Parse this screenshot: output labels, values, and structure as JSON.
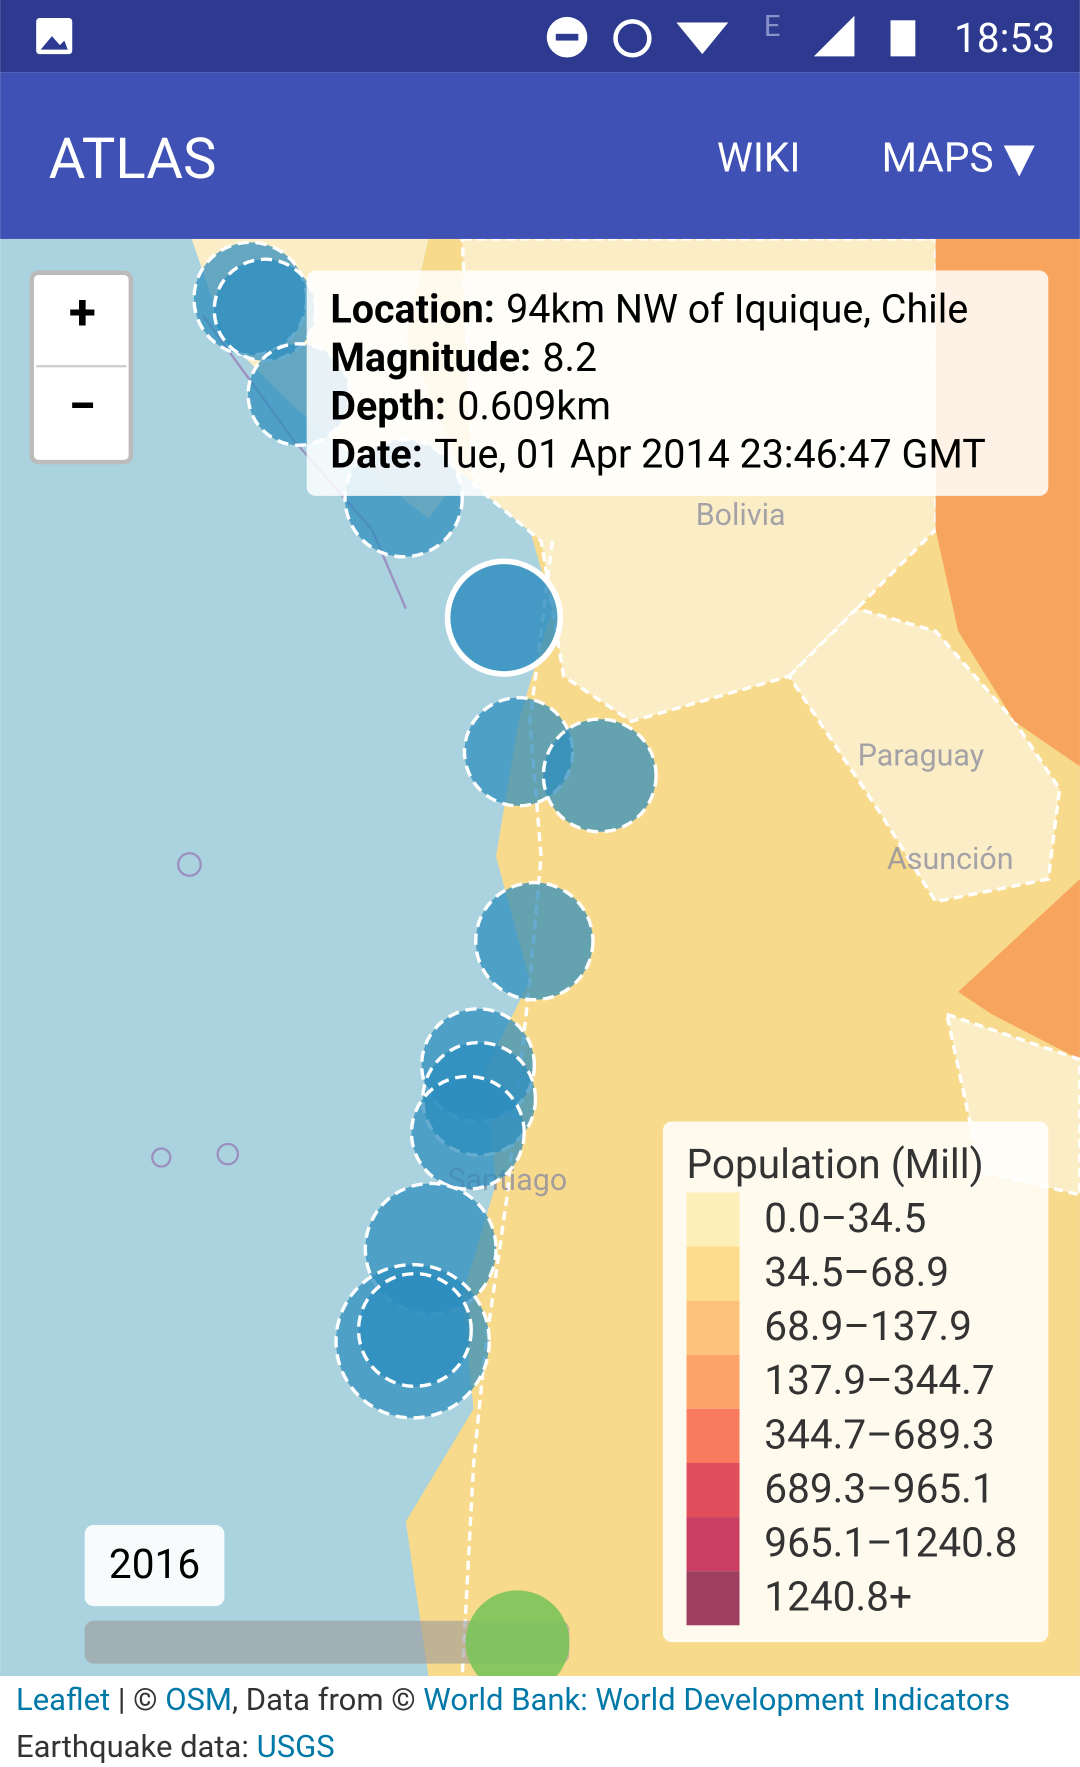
{
  "status_bar": {
    "time": "18:53",
    "network": "E"
  },
  "app_bar": {
    "title": "ATLAS",
    "menu": [
      "WIKI",
      "MAPS ▼"
    ]
  },
  "zoom": {
    "in": "+",
    "out": "−"
  },
  "map_labels": [
    "Bolivia",
    "Paraguay",
    "Asunción",
    "Santiago"
  ],
  "popup": [
    {
      "label": "Location:",
      "value": "94km NW of Iquique, Chile"
    },
    {
      "label": "Magnitude:",
      "value": "8.2"
    },
    {
      "label": "Depth:",
      "value": "0.609km"
    },
    {
      "label": "Date:",
      "value": "Tue, 01 Apr 2014 23:46:47 GMT"
    }
  ],
  "legend": {
    "title": "Population (Mill)",
    "items": [
      {
        "label": "0.0–34.5",
        "color": "#fdefb8"
      },
      {
        "label": "34.5–68.9",
        "color": "#fddc8c"
      },
      {
        "label": "68.9–137.9",
        "color": "#fdc27c"
      },
      {
        "label": "137.9–344.7",
        "color": "#fca46a"
      },
      {
        "label": "344.7–689.3",
        "color": "#f97b5f"
      },
      {
        "label": "689.3–965.1",
        "color": "#e04e5c"
      },
      {
        "label": "965.1–1240.8",
        "color": "#c93e63"
      },
      {
        "label": "1240.8+",
        "color": "#9e3f60"
      }
    ]
  },
  "year": "2016",
  "attribution": {
    "leaflet": "Leaflet",
    "sep": " | © ",
    "osm": "OSM",
    "data_from": ", Data from © ",
    "world_bank": "World Bank: World Development Indicators",
    "quake": " Earthquake data: ",
    "usgs": "USGS"
  }
}
